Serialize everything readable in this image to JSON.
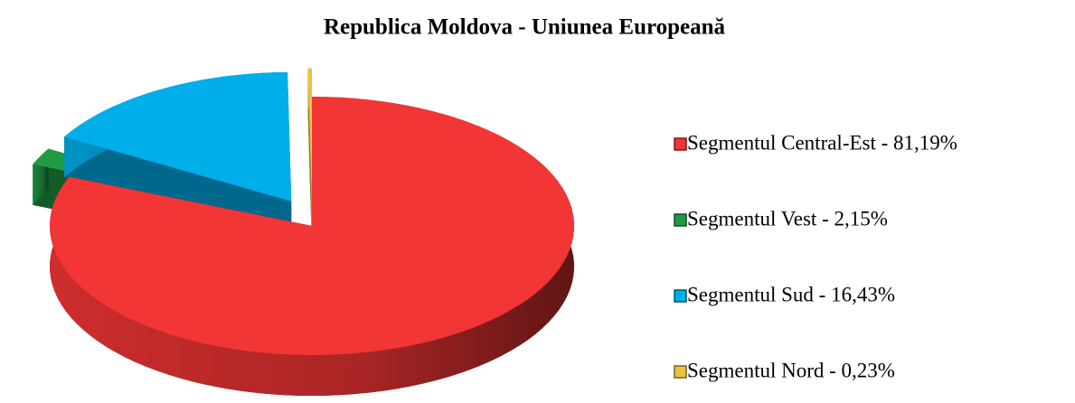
{
  "chart_data": {
    "type": "pie",
    "title": "Republica Moldova - Uniunea Europeană",
    "categories": [
      "Segmentul Central-Est - 81,19%",
      "Segmentul Vest - 2,15%",
      "Segmentul Sud - 16,43%",
      "Segmentul Nord - 0,23%"
    ],
    "values": [
      81.19,
      2.15,
      16.43,
      0.23
    ],
    "colors": [
      "#f23535",
      "#1f9a45",
      "#00aeea",
      "#e8c445"
    ],
    "legend": "right"
  }
}
